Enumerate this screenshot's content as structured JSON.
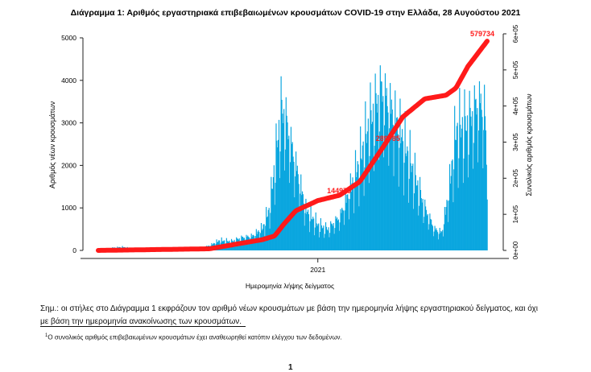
{
  "chart_data": {
    "type": "bar+line",
    "title": "Διάγραμμα 1: Αριθμός εργαστηριακά επιβεβαιωμένων κρουσμάτων COVID-19 στην Ελλάδα, 28 Αυγούστου 2021",
    "xlabel": "Ημερομηνία λήψης δείγματος",
    "ylabel": "Αριθμός νέων κρουσμάτων",
    "y2label": "Συνολικός αριθμός κρουσμάτων",
    "x_range": [
      "2020-02-26",
      "2021-08-28"
    ],
    "x_ticks": [
      {
        "date": "2021-01-01",
        "label": "2021"
      }
    ],
    "ylim": [
      0,
      5000
    ],
    "y_ticks": [
      "0",
      "1000",
      "2000",
      "3000",
      "4000",
      "5000"
    ],
    "y2lim": [
      0,
      600000
    ],
    "y2_ticks": [
      "0e+00",
      "1e+05",
      "2e+05",
      "3e+05",
      "4e+05",
      "5e+05",
      "6e+05"
    ],
    "grid": false,
    "bar_color": "#0aa6df",
    "line_color": "#ff1a1a",
    "series": [
      {
        "name": "new",
        "kind": "bar",
        "axis": "left",
        "points": [
          [
            "2020-02-26",
            5
          ],
          [
            "2020-03-15",
            60
          ],
          [
            "2020-04-01",
            80
          ],
          [
            "2020-04-15",
            30
          ],
          [
            "2020-05-01",
            15
          ],
          [
            "2020-05-15",
            10
          ],
          [
            "2020-06-01",
            15
          ],
          [
            "2020-06-15",
            20
          ],
          [
            "2020-07-01",
            25
          ],
          [
            "2020-07-15",
            35
          ],
          [
            "2020-08-01",
            110
          ],
          [
            "2020-08-15",
            230
          ],
          [
            "2020-09-01",
            210
          ],
          [
            "2020-09-15",
            300
          ],
          [
            "2020-10-01",
            340
          ],
          [
            "2020-10-15",
            520
          ],
          [
            "2020-10-25",
            1000
          ],
          [
            "2020-11-01",
            2000
          ],
          [
            "2020-11-10",
            3300
          ],
          [
            "2020-11-15",
            3200
          ],
          [
            "2020-12-01",
            2000
          ],
          [
            "2020-12-15",
            950
          ],
          [
            "2021-01-01",
            600
          ],
          [
            "2021-01-15",
            500
          ],
          [
            "2021-02-01",
            800
          ],
          [
            "2021-02-15",
            1400
          ],
          [
            "2021-03-01",
            2100
          ],
          [
            "2021-03-15",
            3000
          ],
          [
            "2021-04-01",
            3800
          ],
          [
            "2021-04-15",
            3300
          ],
          [
            "2021-05-01",
            2600
          ],
          [
            "2021-05-15",
            1900
          ],
          [
            "2021-06-01",
            1000
          ],
          [
            "2021-06-15",
            500
          ],
          [
            "2021-06-25",
            420
          ],
          [
            "2021-07-05",
            1400
          ],
          [
            "2021-07-15",
            2800
          ],
          [
            "2021-08-01",
            3000
          ],
          [
            "2021-08-15",
            3500
          ],
          [
            "2021-08-25",
            3300
          ],
          [
            "2021-08-28",
            1300
          ]
        ]
      },
      {
        "name": "cumulative",
        "kind": "line",
        "axis": "right",
        "points": [
          [
            "2020-02-26",
            0
          ],
          [
            "2020-08-01",
            4500
          ],
          [
            "2020-10-15",
            30000
          ],
          [
            "2020-11-01",
            40000
          ],
          [
            "2020-11-15",
            75000
          ],
          [
            "2020-12-01",
            110000
          ],
          [
            "2021-01-01",
            138000
          ],
          [
            "2021-02-01",
            153000
          ],
          [
            "2021-03-01",
            190000
          ],
          [
            "2021-04-01",
            280000
          ],
          [
            "2021-05-01",
            370000
          ],
          [
            "2021-06-01",
            420000
          ],
          [
            "2021-07-01",
            430000
          ],
          [
            "2021-07-15",
            450000
          ],
          [
            "2021-08-01",
            510000
          ],
          [
            "2021-08-28",
            579734
          ]
        ]
      }
    ],
    "annotations": [
      {
        "date": "2021-01-31",
        "value": 144979,
        "label": "144979"
      },
      {
        "date": "2021-04-10",
        "value": 289785,
        "label": "289785"
      },
      {
        "date": "2021-08-28",
        "value": 579734,
        "label": "579734"
      }
    ]
  },
  "note": {
    "line1": "Σημ.: οι στήλες στο Διάγραμμα 1 εκφράζουν τον αριθμό νέων κρουσμάτων με βάση την ημερομηνία λήψης εργαστηριακού δείγματος, και όχι",
    "line2": "με βάση την ημερομηνία ανακοίνωσης των κρουσμάτων."
  },
  "footnote": {
    "marker": "1",
    "text": "Ο συνολικός αριθμός επιβεβαιωμένων κρουσμάτων έχει αναθεωρηθεί κατόπιν ελέγχου των δεδομένων."
  },
  "page_number": "1"
}
